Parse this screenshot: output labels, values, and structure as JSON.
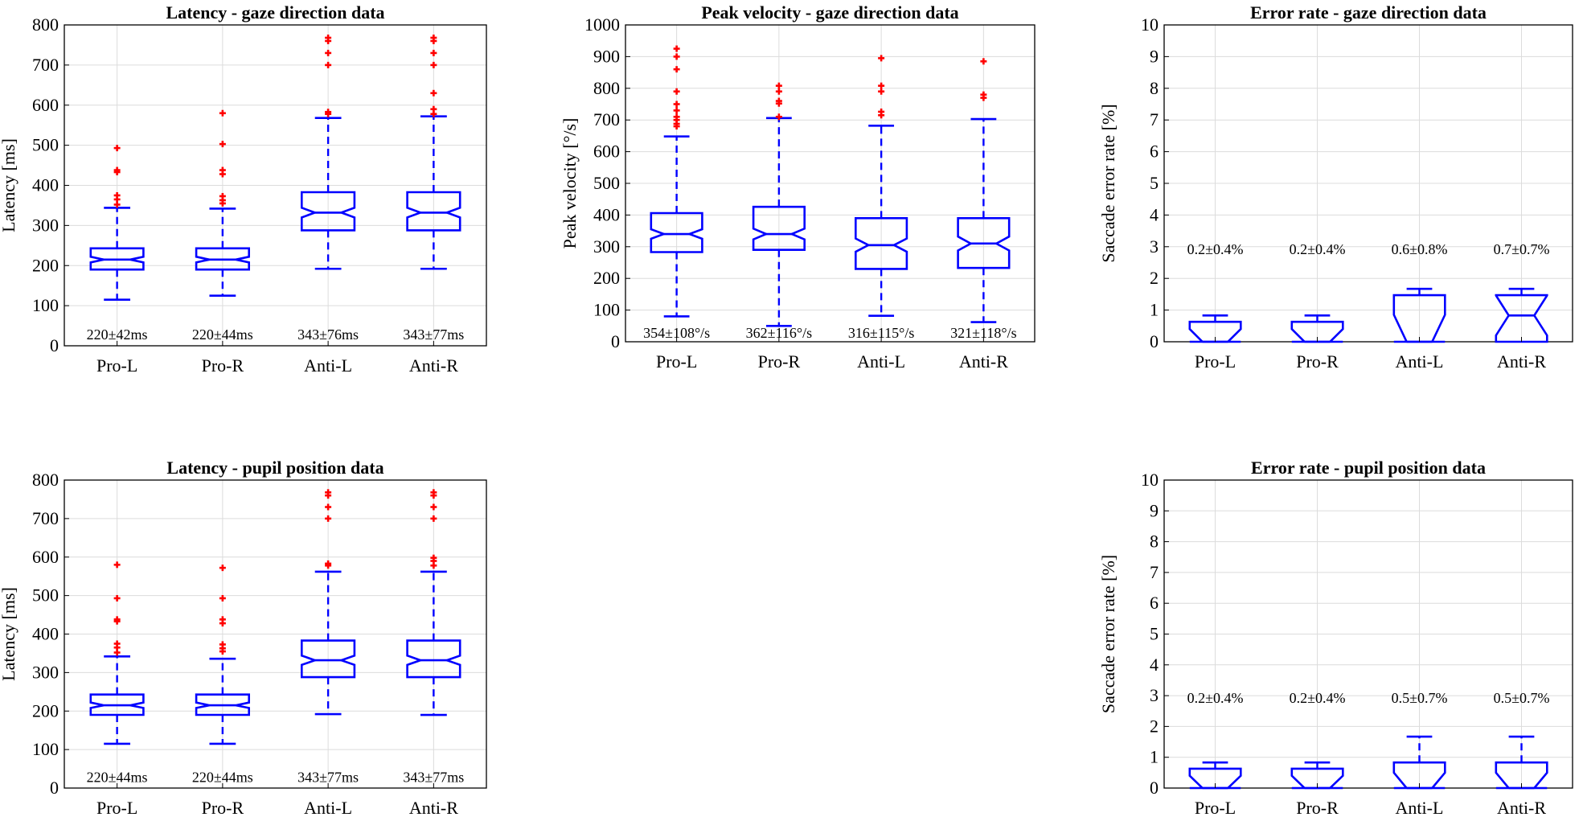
{
  "chart_data": [
    {
      "id": "latency-gaze",
      "type": "box",
      "title": "Latency - gaze direction data",
      "ylabel": "Latency [ms]",
      "xlabel": "",
      "ylim": [
        0,
        800
      ],
      "yticks": [
        0,
        100,
        200,
        300,
        400,
        500,
        600,
        700,
        800
      ],
      "grid": true,
      "categories": [
        "Pro-L",
        "Pro-R",
        "Anti-L",
        "Anti-R"
      ],
      "annotations": [
        "220±42ms",
        "220±44ms",
        "343±76ms",
        "343±77ms"
      ],
      "annotation_y": 30,
      "notch": true,
      "boxes": [
        {
          "min": 115,
          "q1": 190,
          "median": 215,
          "q3": 243,
          "max": 344,
          "notch_lo": 208,
          "notch_hi": 222,
          "outliers": [
            352,
            365,
            375,
            433,
            438,
            493
          ]
        },
        {
          "min": 125,
          "q1": 190,
          "median": 215,
          "q3": 243,
          "max": 342,
          "notch_lo": 208,
          "notch_hi": 222,
          "outliers": [
            355,
            363,
            373,
            428,
            438,
            503,
            580
          ]
        },
        {
          "min": 192,
          "q1": 288,
          "median": 332,
          "q3": 383,
          "max": 568,
          "notch_lo": 320,
          "notch_hi": 344,
          "outliers": [
            578,
            583,
            700,
            730,
            760,
            768
          ]
        },
        {
          "min": 192,
          "q1": 288,
          "median": 332,
          "q3": 383,
          "max": 572,
          "notch_lo": 320,
          "notch_hi": 344,
          "outliers": [
            578,
            590,
            630,
            700,
            730,
            760,
            768
          ]
        }
      ]
    },
    {
      "id": "velocity-gaze",
      "type": "box",
      "title": "Peak velocity - gaze direction data",
      "ylabel": "Peak velocity [°/s]",
      "xlabel": "",
      "ylim": [
        0,
        1000
      ],
      "yticks": [
        0,
        100,
        200,
        300,
        400,
        500,
        600,
        700,
        800,
        900,
        1000
      ],
      "grid": true,
      "categories": [
        "Pro-L",
        "Pro-R",
        "Anti-L",
        "Anti-R"
      ],
      "annotations": [
        "354±108°/s",
        "362±116°/s",
        "316±115°/s",
        "321±118°/s"
      ],
      "annotation_y": 30,
      "notch": true,
      "boxes": [
        {
          "min": 80,
          "q1": 283,
          "median": 340,
          "q3": 406,
          "max": 648,
          "notch_lo": 325,
          "notch_hi": 355,
          "outliers": [
            680,
            688,
            700,
            710,
            730,
            750,
            790,
            860,
            900,
            925
          ]
        },
        {
          "min": 50,
          "q1": 290,
          "median": 340,
          "q3": 426,
          "max": 706,
          "notch_lo": 323,
          "notch_hi": 357,
          "outliers": [
            710,
            752,
            760,
            790,
            808
          ]
        },
        {
          "min": 82,
          "q1": 230,
          "median": 305,
          "q3": 390,
          "max": 682,
          "notch_lo": 284,
          "notch_hi": 326,
          "outliers": [
            715,
            726,
            790,
            808,
            895
          ]
        },
        {
          "min": 62,
          "q1": 233,
          "median": 310,
          "q3": 390,
          "max": 703,
          "notch_lo": 288,
          "notch_hi": 332,
          "outliers": [
            770,
            780,
            885
          ]
        }
      ]
    },
    {
      "id": "error-gaze",
      "type": "box",
      "title": "Error rate - gaze direction data",
      "ylabel": "Saccade error rate [%]",
      "xlabel": "",
      "ylim": [
        0,
        10
      ],
      "yticks": [
        0,
        1,
        2,
        3,
        4,
        5,
        6,
        7,
        8,
        9,
        10
      ],
      "grid": true,
      "categories": [
        "Pro-L",
        "Pro-R",
        "Anti-L",
        "Anti-R"
      ],
      "annotations": [
        "0.2±0.4%",
        "0.2±0.4%",
        "0.6±0.8%",
        "0.7±0.7%"
      ],
      "annotation_y": 2.95,
      "notch": true,
      "boxes": [
        {
          "min": 0,
          "q1": 0,
          "median": 0,
          "q3": 0.63,
          "max": 0.83,
          "notch_lo": 0,
          "notch_hi": 0.4,
          "outliers": []
        },
        {
          "min": 0,
          "q1": 0,
          "median": 0,
          "q3": 0.63,
          "max": 0.83,
          "notch_lo": 0,
          "notch_hi": 0.4,
          "outliers": []
        },
        {
          "min": 0,
          "q1": 0,
          "median": 0,
          "q3": 1.47,
          "max": 1.67,
          "notch_lo": 0,
          "notch_hi": 0.85,
          "outliers": []
        },
        {
          "min": 0,
          "q1": 0,
          "median": 0.83,
          "q3": 1.47,
          "max": 1.67,
          "notch_lo": 0.2,
          "notch_hi": 1.46,
          "outliers": []
        }
      ]
    },
    {
      "id": "latency-pupil",
      "type": "box",
      "title": "Latency - pupil position data",
      "ylabel": "Latency [ms]",
      "xlabel": "",
      "ylim": [
        0,
        800
      ],
      "yticks": [
        0,
        100,
        200,
        300,
        400,
        500,
        600,
        700,
        800
      ],
      "grid": true,
      "categories": [
        "Pro-L",
        "Pro-R",
        "Anti-L",
        "Anti-R"
      ],
      "annotations": [
        "220±44ms",
        "220±44ms",
        "343±77ms",
        "343±77ms"
      ],
      "annotation_y": 30,
      "notch": true,
      "boxes": [
        {
          "min": 115,
          "q1": 190,
          "median": 215,
          "q3": 243,
          "max": 342,
          "notch_lo": 208,
          "notch_hi": 222,
          "outliers": [
            352,
            365,
            375,
            433,
            438,
            493,
            580
          ]
        },
        {
          "min": 115,
          "q1": 190,
          "median": 215,
          "q3": 243,
          "max": 336,
          "notch_lo": 208,
          "notch_hi": 222,
          "outliers": [
            355,
            363,
            373,
            428,
            438,
            493,
            572
          ]
        },
        {
          "min": 192,
          "q1": 288,
          "median": 332,
          "q3": 383,
          "max": 562,
          "notch_lo": 320,
          "notch_hi": 344,
          "outliers": [
            578,
            583,
            700,
            730,
            760,
            768
          ]
        },
        {
          "min": 190,
          "q1": 288,
          "median": 332,
          "q3": 383,
          "max": 562,
          "notch_lo": 320,
          "notch_hi": 344,
          "outliers": [
            578,
            590,
            598,
            700,
            730,
            760,
            768
          ]
        }
      ]
    },
    {
      "id": "error-pupil",
      "type": "box",
      "title": "Error rate - pupil position data",
      "ylabel": "Saccade error rate [%]",
      "xlabel": "",
      "ylim": [
        0,
        10
      ],
      "yticks": [
        0,
        1,
        2,
        3,
        4,
        5,
        6,
        7,
        8,
        9,
        10
      ],
      "grid": true,
      "categories": [
        "Pro-L",
        "Pro-R",
        "Anti-L",
        "Anti-R"
      ],
      "annotations": [
        "0.2±0.4%",
        "0.2±0.4%",
        "0.5±0.7%",
        "0.5±0.7%"
      ],
      "annotation_y": 2.95,
      "notch": true,
      "boxes": [
        {
          "min": 0,
          "q1": 0,
          "median": 0,
          "q3": 0.63,
          "max": 0.83,
          "notch_lo": 0,
          "notch_hi": 0.4,
          "outliers": []
        },
        {
          "min": 0,
          "q1": 0,
          "median": 0,
          "q3": 0.63,
          "max": 0.83,
          "notch_lo": 0,
          "notch_hi": 0.4,
          "outliers": []
        },
        {
          "min": 0,
          "q1": 0,
          "median": 0,
          "q3": 0.83,
          "max": 1.67,
          "notch_lo": 0,
          "notch_hi": 0.5,
          "outliers": []
        },
        {
          "min": 0,
          "q1": 0,
          "median": 0,
          "q3": 0.83,
          "max": 1.67,
          "notch_lo": 0,
          "notch_hi": 0.5,
          "outliers": []
        }
      ]
    }
  ]
}
